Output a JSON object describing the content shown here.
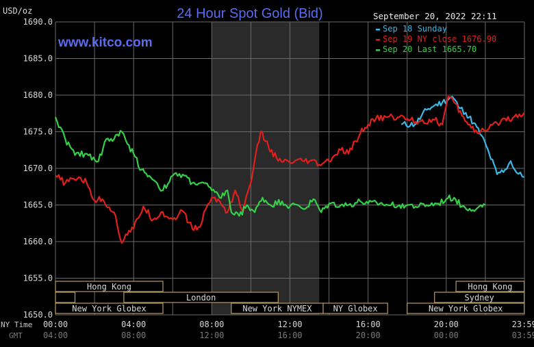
{
  "chart_data": {
    "type": "line",
    "title": "24 Hour Spot Gold (Bid)",
    "watermark": "www.kitco.com",
    "datetime": "September 20, 2022 22:11",
    "ylabel": "USD/oz",
    "ylim": [
      1650,
      1690
    ],
    "y_ticks": [
      "1690.0",
      "1685.0",
      "1680.0",
      "1675.0",
      "1670.0",
      "1665.0",
      "1660.0",
      "1655.0",
      "1650.0"
    ],
    "x_ticks_nytime": [
      "00:00",
      "04:00",
      "08:00",
      "12:00",
      "16:00",
      "20:00",
      "23:59"
    ],
    "x_ticks_gmt": [
      "04:00",
      "08:00",
      "12:00",
      "16:00",
      "20:00",
      "00:00",
      "03:59"
    ],
    "x_label_nytime": "NY Time",
    "x_label_gmt": "GMT",
    "grid": true,
    "legend_position": "top-right",
    "colors": {
      "background": "#000000",
      "grid": "#6b6b6b",
      "shade": "#2a2a2a",
      "title": "#5a6cf0",
      "sep18": "#3cb8e6",
      "sep19": "#e0201c",
      "sep20": "#34d04a",
      "session_border": "#b59b6a",
      "text": "#d8d8d8"
    },
    "legend": [
      {
        "label": "Sep 18 Sunday",
        "color_key": "sep18"
      },
      {
        "label": "Sep 19 NY close 1676.90",
        "color_key": "sep19"
      },
      {
        "label": "Sep 20 Last 1665.70",
        "color_key": "sep20"
      }
    ],
    "series": [
      {
        "name": "Sep 18 Sunday",
        "color_key": "sep18",
        "x": [
          17.7,
          18.4,
          19.0,
          19.4,
          19.8,
          20.3,
          20.7,
          21.0,
          21.4,
          21.8,
          22.2,
          22.6,
          23.0,
          23.3,
          23.6,
          23.99
        ],
        "y": [
          1676.0,
          1676.0,
          1678.0,
          1678.6,
          1679.0,
          1679.8,
          1678.2,
          1677.6,
          1676.2,
          1674.5,
          1672.0,
          1669.2,
          1669.8,
          1671.0,
          1669.4,
          1668.8
        ]
      },
      {
        "name": "Sep 19 NY close 1676.90",
        "color_key": "sep19",
        "x": [
          0.0,
          0.5,
          1.2,
          1.6,
          2.0,
          2.4,
          3.0,
          3.4,
          3.6,
          4.0,
          4.5,
          5.0,
          5.4,
          6.0,
          6.5,
          7.0,
          7.4,
          7.7,
          8.0,
          8.4,
          8.8,
          9.2,
          9.6,
          10.1,
          10.5,
          10.9,
          11.4,
          12.0,
          13.0,
          13.5,
          14.0,
          14.6,
          15.0,
          15.6,
          16.0,
          16.4,
          17.0,
          17.6,
          18.0,
          18.6,
          19.4,
          19.8,
          20.1,
          20.4,
          20.8,
          21.2,
          21.6,
          22.1,
          22.6,
          23.0,
          23.4,
          23.99
        ],
        "y": [
          1669.0,
          1668.0,
          1668.8,
          1668.0,
          1665.6,
          1665.8,
          1664.0,
          1659.8,
          1661.0,
          1661.8,
          1664.8,
          1663.0,
          1664.0,
          1663.0,
          1664.2,
          1661.8,
          1662.0,
          1664.5,
          1666.0,
          1665.5,
          1664.0,
          1667.0,
          1664.0,
          1669.5,
          1675.0,
          1673.0,
          1671.0,
          1670.8,
          1671.0,
          1670.5,
          1671.0,
          1672.5,
          1672.0,
          1674.8,
          1676.0,
          1676.8,
          1677.0,
          1677.0,
          1676.8,
          1676.4,
          1676.6,
          1676.0,
          1679.8,
          1679.0,
          1677.2,
          1676.0,
          1674.8,
          1675.2,
          1676.2,
          1676.8,
          1676.9,
          1677.6
        ]
      },
      {
        "name": "Sep 20 Last 1665.70",
        "color_key": "sep20",
        "x": [
          0.0,
          0.5,
          1.0,
          1.6,
          2.2,
          2.6,
          3.0,
          3.4,
          3.6,
          4.0,
          4.4,
          4.8,
          5.2,
          5.5,
          6.0,
          6.6,
          7.0,
          7.6,
          8.0,
          8.4,
          8.8,
          9.0,
          9.4,
          9.8,
          10.2,
          10.6,
          11.0,
          11.6,
          12.0,
          12.4,
          12.8,
          13.2,
          13.6,
          14.0,
          14.6,
          15.0,
          15.6,
          16.0,
          16.6,
          17.0,
          17.6,
          18.0,
          18.6,
          19.0,
          19.6,
          20.0,
          20.4,
          20.8,
          21.2,
          21.6,
          22.0
        ],
        "y": [
          1677.0,
          1674.0,
          1671.8,
          1672.0,
          1671.0,
          1674.0,
          1674.0,
          1675.0,
          1673.8,
          1672.0,
          1669.8,
          1669.0,
          1668.0,
          1667.0,
          1669.0,
          1669.0,
          1668.0,
          1668.0,
          1667.0,
          1666.0,
          1667.0,
          1664.0,
          1663.5,
          1665.0,
          1664.0,
          1666.0,
          1665.0,
          1665.5,
          1664.8,
          1665.0,
          1664.5,
          1665.8,
          1664.0,
          1665.2,
          1665.0,
          1665.0,
          1665.5,
          1665.2,
          1665.2,
          1665.0,
          1665.0,
          1665.0,
          1664.8,
          1665.0,
          1665.2,
          1665.8,
          1666.0,
          1664.8,
          1664.5,
          1664.6,
          1665.0
        ]
      }
    ],
    "sessions": [
      {
        "label": "Hong Kong",
        "row": 0,
        "start": 0.0,
        "end": 5.5
      },
      {
        "label": "",
        "row": 1,
        "start": 0.0,
        "end": 1.0
      },
      {
        "label": "London",
        "row": 1,
        "start": 3.5,
        "end": 11.4
      },
      {
        "label": "New York Globex",
        "row": 2,
        "start": 0.0,
        "end": 5.5
      },
      {
        "label": "New York NYMEX",
        "row": 2,
        "start": 9.0,
        "end": 13.7
      },
      {
        "label": "NY Globex",
        "row": 2,
        "start": 13.7,
        "end": 17.0
      },
      {
        "label": "Hong Kong",
        "row": 0,
        "start": 20.5,
        "end": 23.99
      },
      {
        "label": "Sydney",
        "row": 1,
        "start": 19.4,
        "end": 23.99
      },
      {
        "label": "New York Globex",
        "row": 2,
        "start": 18.0,
        "end": 23.99
      }
    ],
    "shaded_region": {
      "start": 8.0,
      "end": 13.5
    }
  }
}
